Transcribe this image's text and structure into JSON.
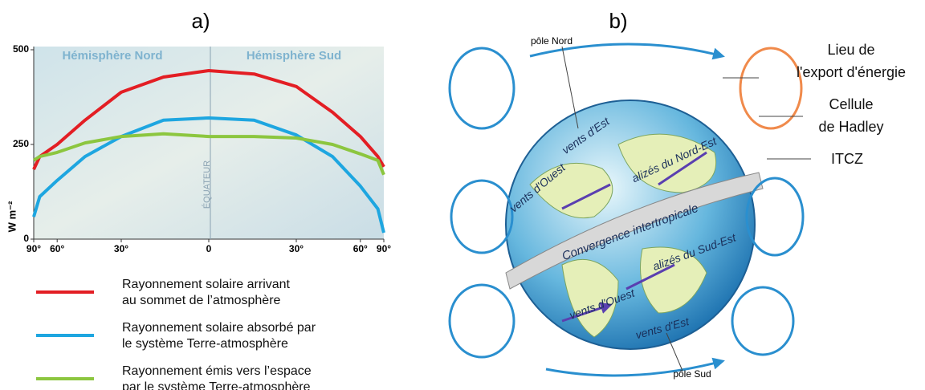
{
  "chart_data": {
    "type": "line",
    "title": "a)",
    "xscale": "sine",
    "x": [
      90,
      75,
      60,
      45,
      30,
      15,
      0,
      -15,
      -30,
      -45,
      -60,
      -75,
      -90
    ],
    "xlim": [
      90,
      -90
    ],
    "xticks": [
      {
        "value": 90,
        "label": "90°"
      },
      {
        "value": 60,
        "label": "60°"
      },
      {
        "value": 30,
        "label": "30°"
      },
      0,
      {
        "value": -30,
        "label": "30°"
      },
      {
        "value": -60,
        "label": "60°"
      },
      {
        "value": -90,
        "label": "90°"
      }
    ],
    "ylim": [
      0,
      500
    ],
    "yticks": [
      0,
      250,
      500
    ],
    "ylabel": "W m⁻²",
    "annotations": [
      "Hémisphère Nord",
      "Hémisphère Sud",
      "ÉQUATEUR"
    ],
    "series": [
      {
        "name": "Rayonnement solaire arrivant\nau sommet de l’atmosphère",
        "color": "#e31e24",
        "values": [
          184,
          218,
          250,
          314,
          388,
          428,
          445,
          436,
          403,
          335,
          271,
          218,
          191
        ]
      },
      {
        "name": "Rayonnement solaire absorbé par\nle système Terre-atmosphère",
        "color": "#1ea6e0",
        "values": [
          59,
          112,
          155,
          218,
          271,
          314,
          320,
          314,
          275,
          218,
          140,
          80,
          17
        ]
      },
      {
        "name": "Rayonnement émis vers l’espace\npar le système Terre-atmosphère",
        "color": "#8cc63f",
        "values": [
          208,
          218,
          229,
          254,
          271,
          278,
          271,
          271,
          267,
          250,
          225,
          208,
          170
        ]
      }
    ]
  },
  "diagram": {
    "title": "b)",
    "labels": [
      "pôle Nord",
      "vents d'Est",
      "vents d'Ouest",
      "alizés du Nord-Est",
      "Convergence intertropicale",
      "alizés du Sud-Est",
      "vents d'Ouest",
      "vents d'Est",
      "pôle Sud"
    ],
    "callouts": [
      "Lieu de\nl'export d'énergie",
      "Cellule\nde Hadley",
      "ITCZ"
    ]
  }
}
